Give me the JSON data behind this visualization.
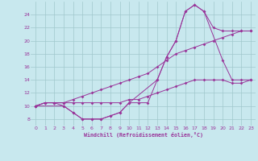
{
  "background_color": "#c8e8ee",
  "grid_color": "#a0c8cc",
  "line_color": "#993399",
  "xlabel": "Windchill (Refroidissement éolien,°C)",
  "xlim": [
    -0.5,
    23.5
  ],
  "ylim": [
    7.0,
    26.0
  ],
  "yticks": [
    8,
    10,
    12,
    14,
    16,
    18,
    20,
    22,
    24
  ],
  "xticks": [
    0,
    1,
    2,
    3,
    4,
    5,
    6,
    7,
    8,
    9,
    10,
    11,
    12,
    13,
    14,
    15,
    16,
    17,
    18,
    19,
    20,
    21,
    22,
    23
  ],
  "curves": [
    {
      "x": [
        0,
        1,
        2,
        3,
        4,
        5,
        6,
        7,
        8,
        9,
        10,
        11,
        12,
        13,
        14,
        15,
        16,
        17,
        18,
        19,
        20,
        21,
        22,
        23
      ],
      "y": [
        10,
        10.5,
        10.5,
        10.5,
        10.5,
        10.5,
        10.5,
        10.5,
        10.5,
        10.5,
        11,
        11,
        11.5,
        12,
        12.5,
        13,
        13.5,
        14,
        14,
        14,
        14,
        13.5,
        13.5,
        14
      ]
    },
    {
      "x": [
        0,
        1,
        2,
        3,
        4,
        5,
        6,
        7,
        8,
        9,
        10,
        11,
        12,
        13,
        14,
        15,
        16,
        17,
        18,
        19,
        20,
        21,
        22,
        23
      ],
      "y": [
        10,
        10.5,
        10.5,
        10.5,
        11,
        11.5,
        12,
        12.5,
        13,
        13.5,
        14,
        14.5,
        15,
        16,
        17,
        18,
        18.5,
        19,
        19.5,
        20,
        20.5,
        21,
        21.5,
        21.5
      ]
    },
    {
      "x": [
        0,
        1,
        2,
        3,
        4,
        5,
        6,
        7,
        8,
        9,
        10,
        11,
        12,
        13,
        14,
        15,
        16,
        17,
        18,
        19,
        20,
        21,
        22,
        23
      ],
      "y": [
        10,
        10.5,
        10.5,
        10,
        9,
        8,
        8,
        8,
        8.5,
        9,
        10.5,
        10.5,
        10.5,
        14,
        17.5,
        20,
        24.5,
        25.5,
        24.5,
        22,
        21.5,
        21.5,
        21.5,
        21.5
      ]
    },
    {
      "x": [
        0,
        3,
        4,
        5,
        6,
        7,
        8,
        9,
        10,
        13,
        14,
        15,
        16,
        17,
        18,
        20,
        21,
        22,
        23
      ],
      "y": [
        10,
        10,
        9,
        8,
        8,
        8,
        8.5,
        9,
        10.5,
        14,
        17.5,
        20,
        24.5,
        25.5,
        24.5,
        17,
        14,
        14,
        14
      ]
    }
  ]
}
